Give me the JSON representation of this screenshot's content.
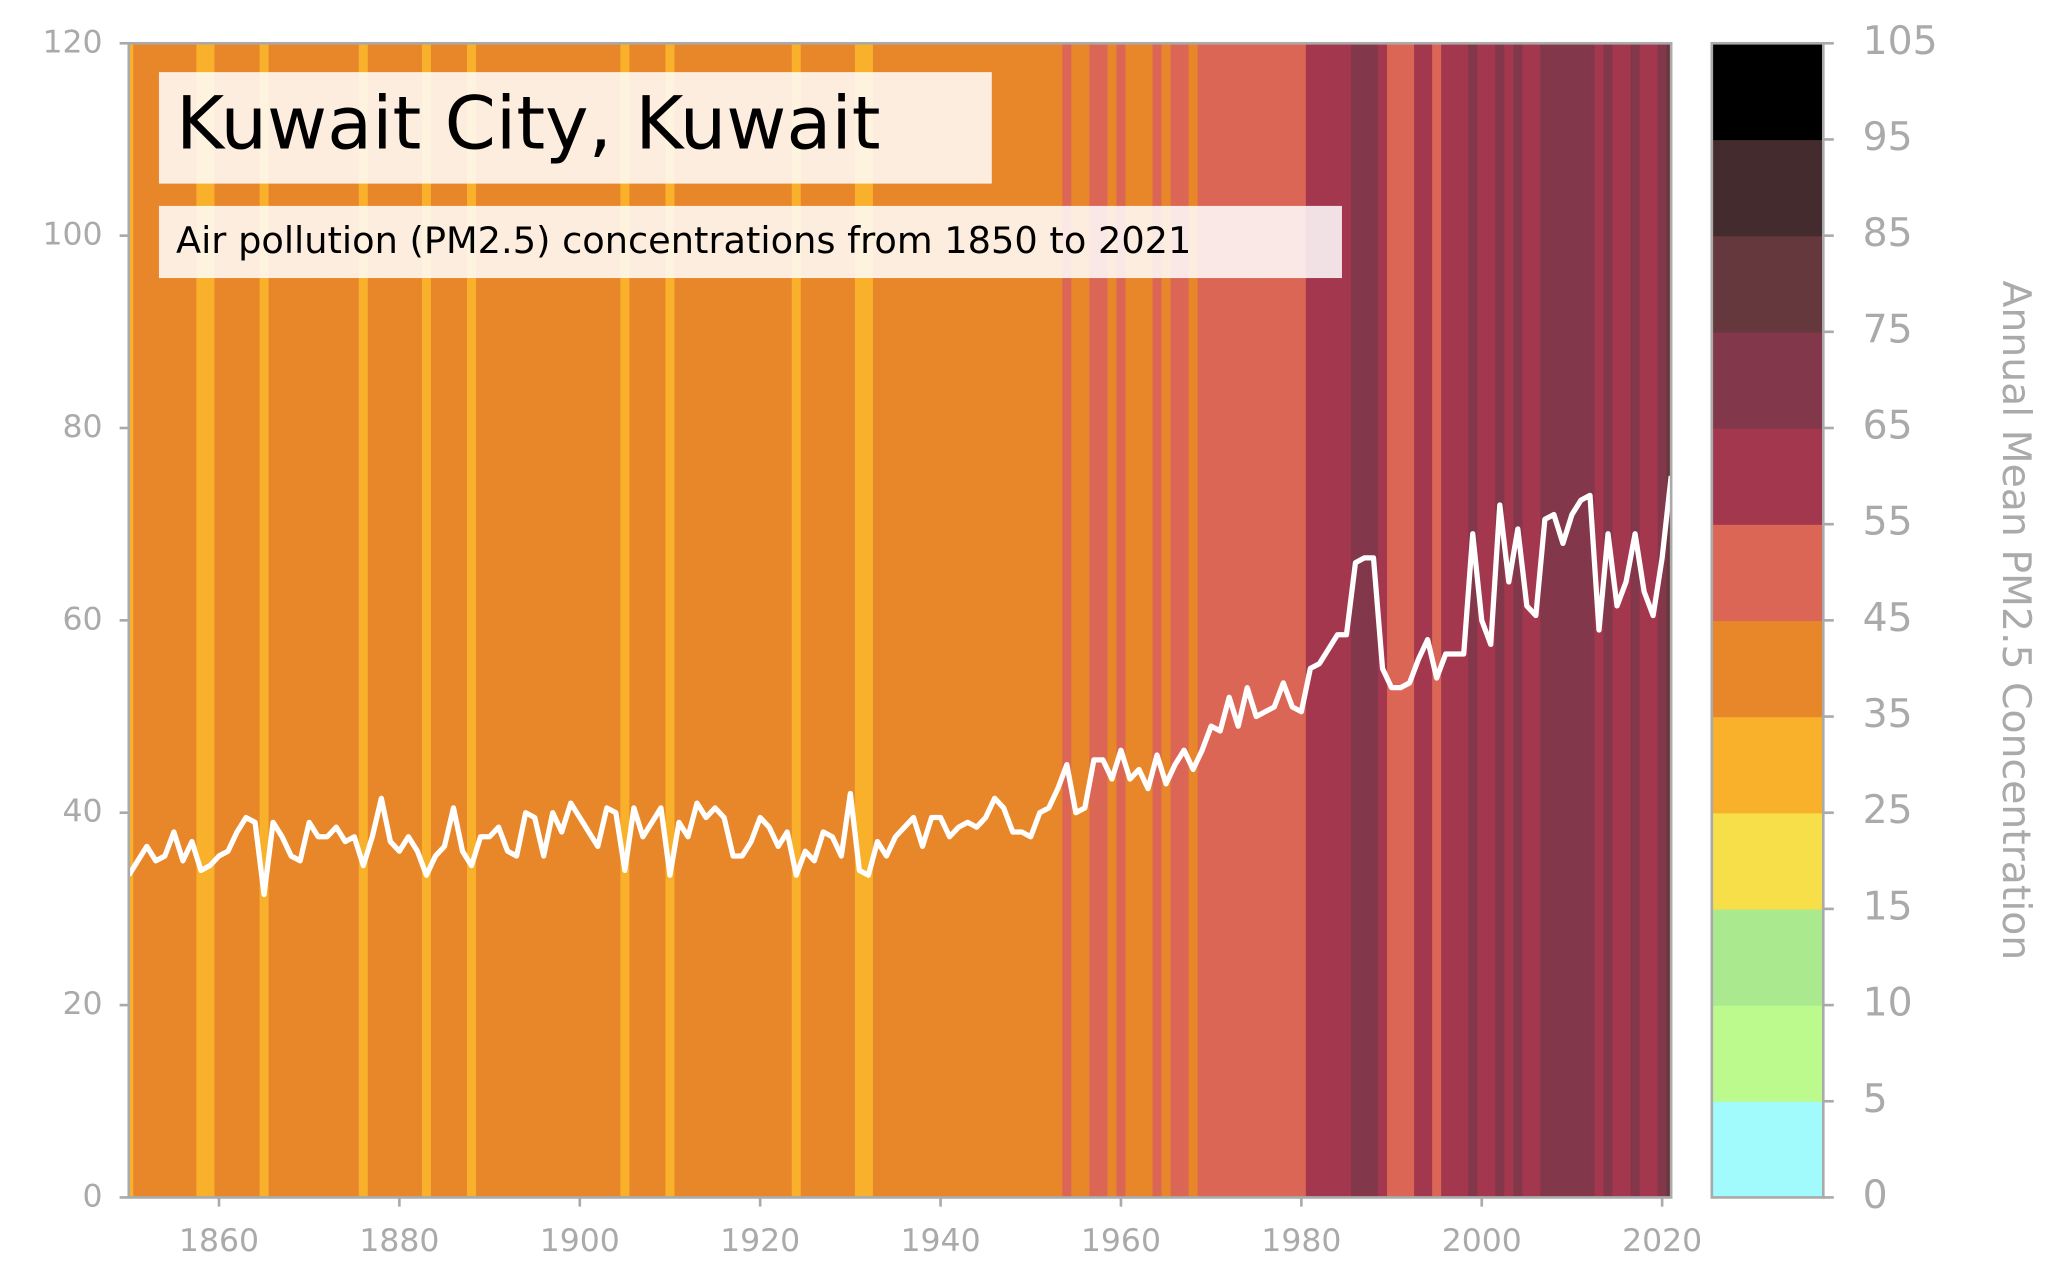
{
  "chart_data": {
    "type": "line",
    "title": "Kuwait City, Kuwait",
    "subtitle": "Air pollution (PM2.5) concentrations from 1850 to 2021",
    "x": [
      1850,
      1851,
      1852,
      1853,
      1854,
      1855,
      1856,
      1857,
      1858,
      1859,
      1860,
      1861,
      1862,
      1863,
      1864,
      1865,
      1866,
      1867,
      1868,
      1869,
      1870,
      1871,
      1872,
      1873,
      1874,
      1875,
      1876,
      1877,
      1878,
      1879,
      1880,
      1881,
      1882,
      1883,
      1884,
      1885,
      1886,
      1887,
      1888,
      1889,
      1890,
      1891,
      1892,
      1893,
      1894,
      1895,
      1896,
      1897,
      1898,
      1899,
      1900,
      1901,
      1902,
      1903,
      1904,
      1905,
      1906,
      1907,
      1908,
      1909,
      1910,
      1911,
      1912,
      1913,
      1914,
      1915,
      1916,
      1917,
      1918,
      1919,
      1920,
      1921,
      1922,
      1923,
      1924,
      1925,
      1926,
      1927,
      1928,
      1929,
      1930,
      1931,
      1932,
      1933,
      1934,
      1935,
      1936,
      1937,
      1938,
      1939,
      1940,
      1941,
      1942,
      1943,
      1944,
      1945,
      1946,
      1947,
      1948,
      1949,
      1950,
      1951,
      1952,
      1953,
      1954,
      1955,
      1956,
      1957,
      1958,
      1959,
      1960,
      1961,
      1962,
      1963,
      1964,
      1965,
      1966,
      1967,
      1968,
      1969,
      1970,
      1971,
      1972,
      1973,
      1974,
      1975,
      1976,
      1977,
      1978,
      1979,
      1980,
      1981,
      1982,
      1983,
      1984,
      1985,
      1986,
      1987,
      1988,
      1989,
      1990,
      1991,
      1992,
      1993,
      1994,
      1995,
      1996,
      1997,
      1998,
      1999,
      2000,
      2001,
      2002,
      2003,
      2004,
      2005,
      2006,
      2007,
      2008,
      2009,
      2010,
      2011,
      2012,
      2013,
      2014,
      2015,
      2016,
      2017,
      2018,
      2019,
      2020,
      2021
    ],
    "values": [
      33.5,
      35,
      36.5,
      35,
      35.5,
      38,
      35,
      37,
      34,
      34.5,
      35.5,
      36,
      38,
      39.5,
      39,
      31.5,
      39,
      37.5,
      35.5,
      35,
      39,
      37.5,
      37.5,
      38.5,
      37,
      37.5,
      34.5,
      37.5,
      41.5,
      37,
      36,
      37.5,
      36,
      33.5,
      35.5,
      36.5,
      40.5,
      36,
      34.5,
      37.5,
      37.5,
      38.5,
      36,
      35.5,
      40,
      39.5,
      35.5,
      40,
      38,
      41,
      39.5,
      38,
      36.5,
      40.5,
      40,
      34,
      40.5,
      37.5,
      39,
      40.5,
      33.5,
      39,
      37.5,
      41,
      39.5,
      40.5,
      39.5,
      35.5,
      35.5,
      37,
      39.5,
      38.5,
      36.5,
      38,
      33.5,
      36,
      35,
      38,
      37.5,
      35.5,
      42,
      34,
      33.5,
      37,
      35.5,
      37.5,
      38.5,
      39.5,
      36.5,
      39.5,
      39.5,
      37.5,
      38.5,
      39,
      38.5,
      39.5,
      41.5,
      40.5,
      38,
      38,
      37.5,
      40,
      40.5,
      42.5,
      45,
      40,
      40.5,
      45.5,
      45.5,
      43.5,
      46.5,
      43.5,
      44.5,
      42.5,
      46,
      43,
      45,
      46.5,
      44.5,
      46.5,
      49,
      48.5,
      52,
      49,
      53,
      50,
      50.5,
      51,
      53.5,
      51,
      50.5,
      55,
      55.5,
      57,
      58.5,
      58.5,
      66,
      66.5,
      66.5,
      55,
      53,
      53,
      53.5,
      56,
      58,
      54,
      56.5,
      56.5,
      56.5,
      69,
      60,
      57.5,
      72,
      64,
      69.5,
      61.5,
      60.5,
      70.5,
      71,
      68,
      71,
      72.5,
      73,
      59,
      69,
      61.5,
      64,
      69,
      63,
      60.5,
      66.5,
      75
    ],
    "line_color": "#ffffff",
    "xlim": [
      1850,
      2021
    ],
    "ylim": [
      0,
      120
    ],
    "xticks": [
      1860,
      1880,
      1900,
      1920,
      1940,
      1960,
      1980,
      2000,
      2020
    ],
    "yticks": [
      0,
      20,
      40,
      60,
      80,
      100,
      120
    ],
    "colorbar": {
      "label": "Annual Mean PM2.5 Concentration",
      "ticks": [
        0,
        5,
        10,
        15,
        25,
        35,
        45,
        55,
        65,
        75,
        85,
        95,
        105
      ],
      "colors": [
        "#a1fafb",
        "#bcfa8e",
        "#abe98f",
        "#f6df48",
        "#f9b02a",
        "#e8862a",
        "#db6656",
        "#a3374e",
        "#83374a",
        "#64383c",
        "#432b2e",
        "#000000"
      ]
    }
  }
}
